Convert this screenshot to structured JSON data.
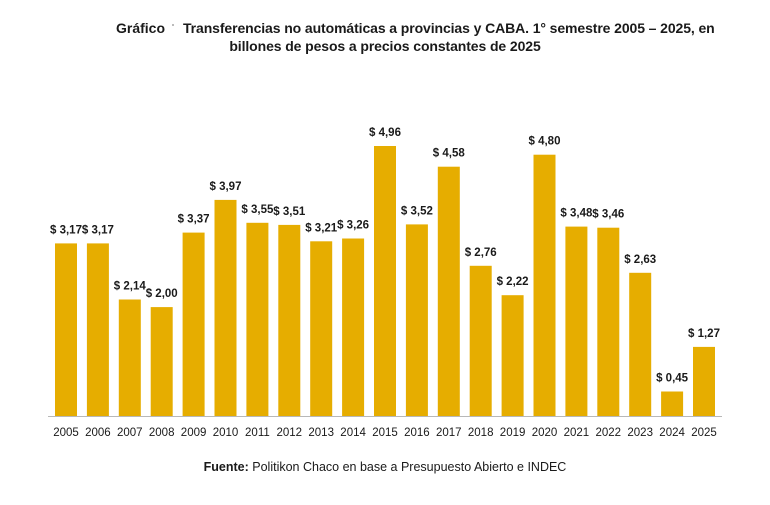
{
  "header": {
    "label": "Gráfico",
    "title_line_1": "Transferencias no automáticas a provincias y CABA. 1° semestre 2005 – 2025, en",
    "title_line_2": "billones de pesos a precios constantes de 2025"
  },
  "footer": {
    "source_label": "Fuente:",
    "source_text": "Politikon Chaco en base a Presupuesto Abierto e INDEC"
  },
  "chart_data": {
    "type": "bar",
    "title": "Transferencias no automáticas a provincias y CABA. 1° semestre 2005 – 2025, en billones de pesos a precios constantes de 2025",
    "xlabel": "",
    "ylabel": "",
    "categories": [
      "2005",
      "2006",
      "2007",
      "2008",
      "2009",
      "2010",
      "2011",
      "2012",
      "2013",
      "2014",
      "2015",
      "2016",
      "2017",
      "2018",
      "2019",
      "2020",
      "2021",
      "2022",
      "2023",
      "2024",
      "2025"
    ],
    "values": [
      3.17,
      3.17,
      2.14,
      2.0,
      3.37,
      3.97,
      3.55,
      3.51,
      3.21,
      3.26,
      4.96,
      3.52,
      4.58,
      2.76,
      2.22,
      4.8,
      3.48,
      3.46,
      2.63,
      0.45,
      1.27
    ],
    "value_labels": [
      "$ 3,17",
      "$ 3,17",
      "$ 2,14",
      "$ 2,00",
      "$ 3,37",
      "$ 3,97",
      "$ 3,55",
      "$ 3,51",
      "$ 3,21",
      "$ 3,26",
      "$ 4,96",
      "$ 3,52",
      "$ 4,58",
      "$ 2,76",
      "$ 2,22",
      "$ 4,80",
      "$ 3,48",
      "$ 3,46",
      "$ 2,63",
      "$ 0,45",
      "$ 1,27"
    ],
    "ylim": [
      0,
      5
    ],
    "grid": false,
    "bar_color": "#e6ad00",
    "axis_color": "#b8b8b8"
  }
}
